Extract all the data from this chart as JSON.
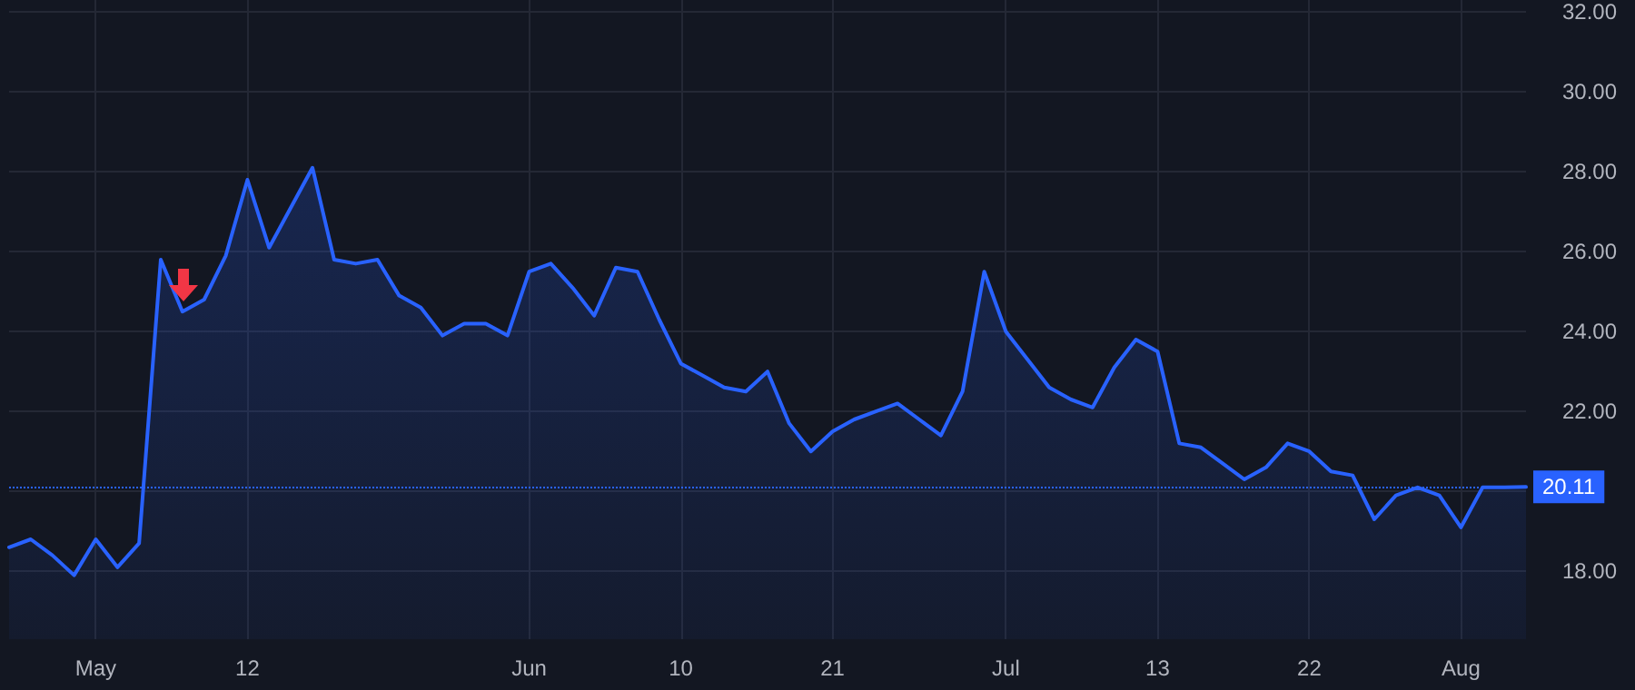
{
  "chart_data": {
    "type": "area",
    "categories": [
      null,
      null,
      null,
      null,
      "May",
      null,
      null,
      null,
      null,
      null,
      null,
      "12",
      null,
      null,
      null,
      null,
      null,
      null,
      null,
      null,
      null,
      null,
      null,
      null,
      "Jun",
      null,
      null,
      null,
      null,
      null,
      null,
      "10",
      null,
      null,
      null,
      null,
      null,
      null,
      "21",
      null,
      null,
      null,
      null,
      null,
      null,
      null,
      "Jul",
      null,
      null,
      null,
      null,
      null,
      null,
      "13",
      null,
      null,
      null,
      null,
      null,
      null,
      "22",
      null,
      null,
      null,
      null,
      null,
      null,
      "Aug",
      null,
      null,
      null
    ],
    "series": [
      {
        "color": "#2962ff",
        "values": [
          18.6,
          18.8,
          18.4,
          17.9,
          18.8,
          18.1,
          18.7,
          25.8,
          24.5,
          24.8,
          25.9,
          27.8,
          26.1,
          27.1,
          28.1,
          25.8,
          25.7,
          25.8,
          24.9,
          24.6,
          23.9,
          24.2,
          24.2,
          23.9,
          25.5,
          25.7,
          25.1,
          24.4,
          25.6,
          25.5,
          24.3,
          23.2,
          22.9,
          22.6,
          22.5,
          23.0,
          21.7,
          21.0,
          21.5,
          21.8,
          22.0,
          22.2,
          21.8,
          21.4,
          22.5,
          25.5,
          24.0,
          23.3,
          22.6,
          22.3,
          22.1,
          23.1,
          23.8,
          23.5,
          21.2,
          21.1,
          20.7,
          20.3,
          20.6,
          21.2,
          21.0,
          20.5,
          20.4,
          19.3,
          19.9,
          20.1,
          19.9,
          19.1,
          20.1,
          20.1,
          20.11
        ]
      }
    ],
    "ylim": [
      16.3,
      32.3
    ],
    "yticks": [
      {
        "value": 18,
        "label": "18.00"
      },
      {
        "value": 20,
        "label": null
      },
      {
        "value": 22,
        "label": "22.00"
      },
      {
        "value": 24,
        "label": "24.00"
      },
      {
        "value": 26,
        "label": "26.00"
      },
      {
        "value": 28,
        "label": "28.00"
      },
      {
        "value": 30,
        "label": "30.00"
      },
      {
        "value": 32,
        "label": "32.00"
      }
    ],
    "ref_lines": [
      {
        "axis": "y",
        "value": 20.11,
        "label": "20.11",
        "color": "#2962ff",
        "line_style": "dotted"
      }
    ],
    "grid": true,
    "marker": "none",
    "line_style": "solid"
  }
}
